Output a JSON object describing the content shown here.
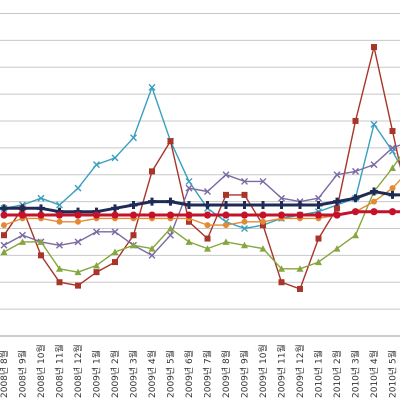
{
  "chart_data": {
    "type": "line",
    "title": "",
    "xlabel": "",
    "ylabel": "",
    "ylim": [
      0,
      100
    ],
    "grid": true,
    "legend": "none",
    "categories": [
      "2008년 8월",
      "2008년 9월",
      "2008년 10월",
      "2008년 11월",
      "2008년 12월",
      "2009년 1월",
      "2009년 2월",
      "2009년 3월",
      "2009년 4월",
      "2009년 5월",
      "2009년 6월",
      "2009년 7월",
      "2009년 8월",
      "2009년 9월",
      "2009년 10월",
      "2009년 11월",
      "2009년 12월",
      "2010년 1월",
      "2010년 2월",
      "2010년 3월",
      "2010년 4월",
      "2010년 5월",
      "2010년 6월"
    ],
    "series": [
      {
        "color": "#3a9fbf",
        "marker": "x",
        "values": [
          38,
          39,
          41,
          39,
          44,
          51,
          53,
          59,
          74,
          58,
          46,
          38,
          34,
          32,
          33,
          35,
          36,
          37,
          39,
          41,
          63,
          55,
          45
        ]
      },
      {
        "color": "#a8342a",
        "marker": "square",
        "values": [
          30,
          38,
          24,
          16,
          15,
          19,
          22,
          30,
          49,
          58,
          34,
          29,
          42,
          42,
          33,
          16,
          14,
          29,
          38,
          64,
          86,
          61,
          36
        ]
      },
      {
        "color": "#7b6aa2",
        "marker": "x",
        "values": [
          27,
          30,
          28,
          27,
          28,
          31,
          31,
          27,
          24,
          30,
          44,
          43,
          48,
          46,
          46,
          41,
          40,
          41,
          48,
          49,
          51,
          56,
          58
        ]
      },
      {
        "color": "#86a63e",
        "marker": "triangle",
        "values": [
          25,
          28,
          28,
          20,
          19,
          21,
          25,
          27,
          26,
          32,
          28,
          26,
          28,
          27,
          26,
          20,
          20,
          22,
          26,
          30,
          43,
          50,
          58
        ]
      },
      {
        "color": "#e38b34",
        "marker": "circle",
        "values": [
          33,
          35,
          35,
          34,
          34,
          35,
          35,
          35,
          35,
          35,
          35,
          33,
          33,
          34,
          34,
          35,
          35,
          35,
          36,
          37,
          40,
          44,
          50
        ]
      },
      {
        "color": "#1e2b56",
        "marker": "plus",
        "values": [
          38,
          38,
          38,
          37,
          37,
          37,
          38,
          39,
          40,
          40,
          39,
          39,
          39,
          39,
          39,
          39,
          39,
          39,
          40,
          41,
          43,
          42,
          42
        ]
      },
      {
        "color": "#c4122a",
        "marker": "circle",
        "values": [
          36,
          36,
          36,
          36,
          36,
          36,
          36,
          36,
          36,
          36,
          36,
          36,
          36,
          36,
          36,
          36,
          36,
          36,
          36,
          37,
          37,
          37,
          37
        ]
      }
    ]
  }
}
